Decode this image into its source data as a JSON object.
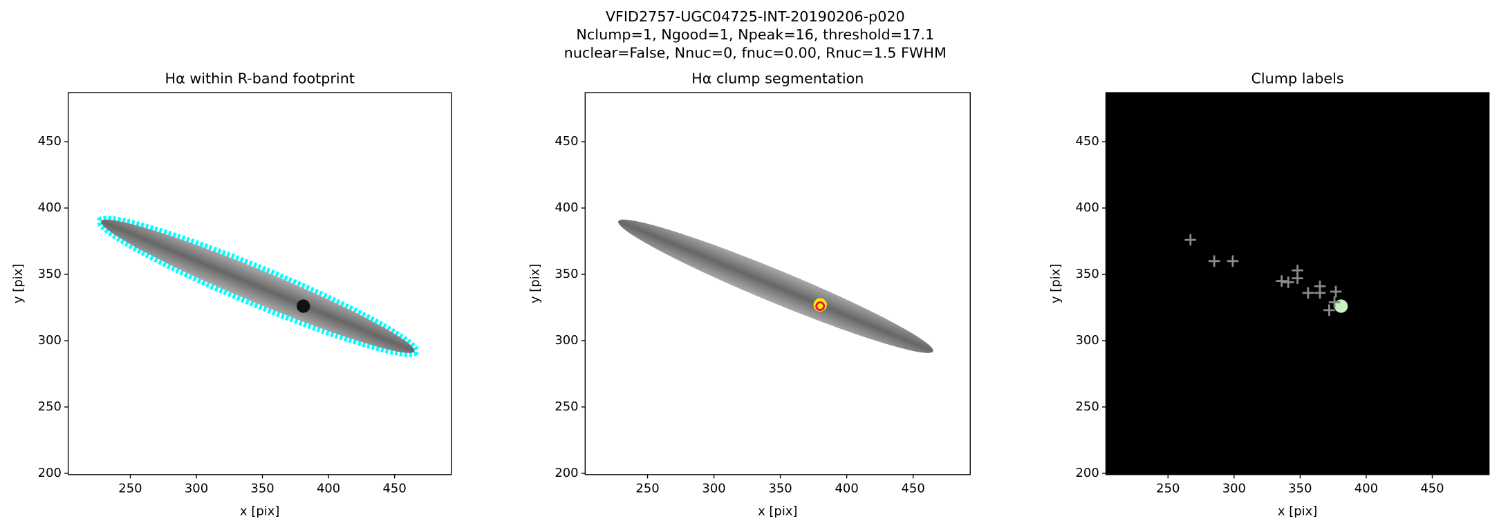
{
  "figure_title": [
    "VFID2757-UGC04725-INT-20190206-p020",
    "Nclump=1, Ngood=1, Npeak=16, threshold=17.1",
    "nuclear=False, Nnuc=0, fnuc=0.00, Rnuc=1.5 FWHM"
  ],
  "chart_data": [
    {
      "type": "image",
      "title": "Hα within R-band footprint",
      "xlabel": "x [pix]",
      "ylabel": "y [pix]",
      "xlim": [
        203,
        493
      ],
      "ylim": [
        199,
        487
      ],
      "xticks": [
        250,
        300,
        350,
        400,
        450
      ],
      "yticks": [
        200,
        250,
        300,
        350,
        400,
        450
      ],
      "background": "#ffffff",
      "outline": "#00ffff",
      "series": [
        {
          "x": [
            381
          ],
          "y": [
            326
          ],
          "color": "#111111",
          "marker": "o"
        }
      ]
    },
    {
      "type": "image",
      "title": "Hα clump segmentation",
      "xlabel": "x [pix]",
      "ylabel": "y [pix]",
      "xlim": [
        203,
        493
      ],
      "ylim": [
        199,
        487
      ],
      "xticks": [
        250,
        300,
        350,
        400,
        450
      ],
      "yticks": [
        200,
        250,
        300,
        350,
        400,
        450
      ],
      "background": "#ffffff",
      "series": [
        {
          "x": [
            380
          ],
          "y": [
            327
          ],
          "color": "#ffe600",
          "marker": "o"
        },
        {
          "x": [
            380
          ],
          "y": [
            326
          ],
          "color": "#e0103a",
          "marker": "ring"
        }
      ]
    },
    {
      "type": "scatter",
      "title": "Clump labels",
      "xlabel": "x [pix]",
      "ylabel": "y [pix]",
      "xlim": [
        203,
        493
      ],
      "ylim": [
        199,
        487
      ],
      "xticks": [
        250,
        300,
        350,
        400,
        450
      ],
      "yticks": [
        200,
        250,
        300,
        350,
        400,
        450
      ],
      "background": "#000000",
      "series": [
        {
          "x": [
            381
          ],
          "y": [
            326
          ],
          "color": "#c8f0c0",
          "marker": "o"
        },
        {
          "x": [
            267,
            285,
            299,
            336,
            341,
            348,
            348,
            356,
            365,
            365,
            377,
            372,
            376
          ],
          "y": [
            376,
            360,
            360,
            345,
            344,
            353,
            347,
            336,
            341,
            336,
            337,
            323,
            329
          ],
          "color": "#8a8a8a",
          "marker": "+"
        }
      ]
    }
  ]
}
